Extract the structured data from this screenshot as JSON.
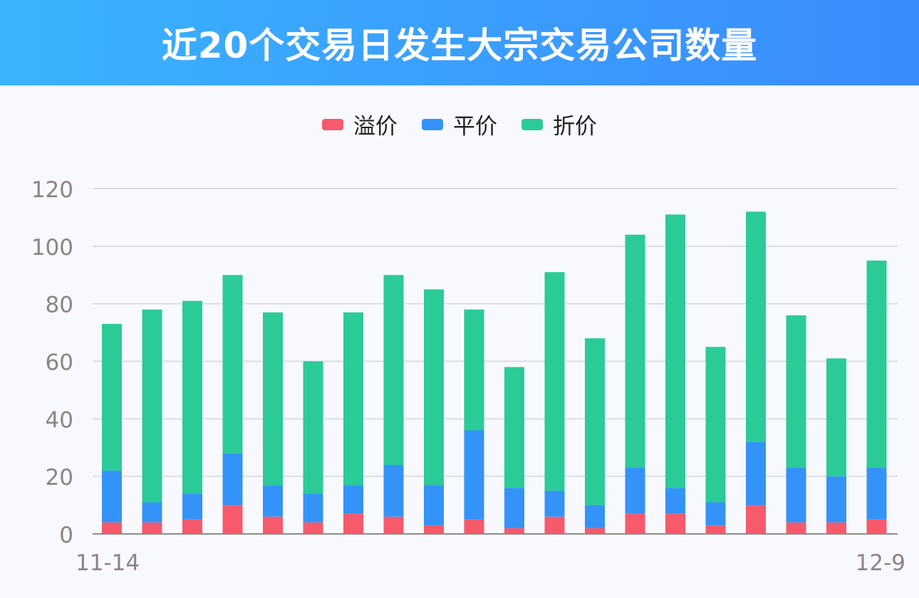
{
  "header": {
    "title": "近20个交易日发生大宗交易公司数量"
  },
  "colors": {
    "premium": "#f75a6b",
    "par": "#3493f8",
    "discount": "#2bcb98",
    "grid": "#dcdde5",
    "axis": "#8c8c8c",
    "tick_text": "#8b8383"
  },
  "chart_data": {
    "type": "bar",
    "stacked": true,
    "title": "近20个交易日发生大宗交易公司数量",
    "xlabel": "",
    "ylabel": "",
    "ylim": [
      0,
      120
    ],
    "yticks": [
      0,
      20,
      40,
      60,
      80,
      100,
      120
    ],
    "x_tick_labels": [
      "11-14",
      "12-9"
    ],
    "categories": [
      "11-14",
      "",
      "",
      "",
      "",
      "",
      "",
      "",
      "",
      "",
      "",
      "",
      "",
      "",
      "",
      "",
      "",
      "",
      "",
      "12-9"
    ],
    "series": [
      {
        "name": "溢价",
        "color": "#f75a6b",
        "values": [
          4,
          4,
          5,
          10,
          6,
          4,
          7,
          6,
          3,
          5,
          2,
          6,
          2,
          7,
          7,
          3,
          10,
          4,
          4,
          5
        ]
      },
      {
        "name": "平价",
        "color": "#3493f8",
        "values": [
          18,
          7,
          9,
          18,
          11,
          10,
          10,
          18,
          14,
          31,
          14,
          9,
          8,
          16,
          9,
          8,
          22,
          19,
          16,
          18
        ]
      },
      {
        "name": "折价",
        "color": "#2bcb98",
        "values": [
          51,
          67,
          67,
          62,
          60,
          46,
          60,
          66,
          68,
          42,
          42,
          76,
          58,
          81,
          95,
          54,
          80,
          53,
          41,
          72
        ]
      }
    ],
    "legend_position": "top-center",
    "grid": true
  }
}
